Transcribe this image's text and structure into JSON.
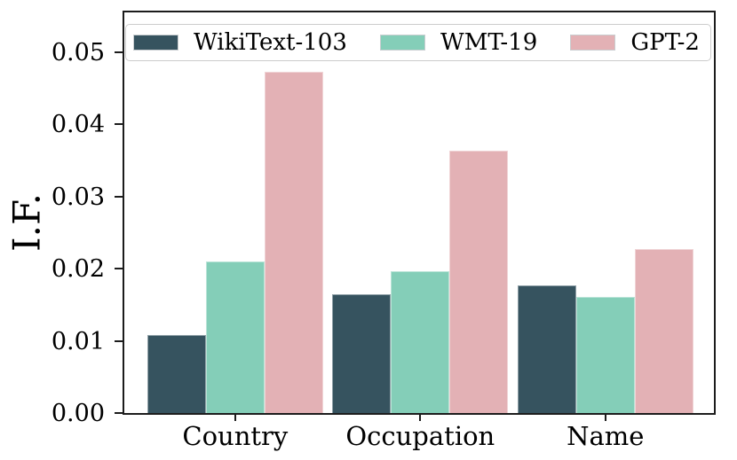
{
  "chart_data": {
    "type": "bar",
    "title": "",
    "xlabel": "",
    "ylabel": "I.F.",
    "categories": [
      "Country",
      "Occupation",
      "Name"
    ],
    "series": [
      {
        "name": "WikiText-103",
        "color": "#36535F",
        "values": [
          0.0108,
          0.0164,
          0.0177
        ]
      },
      {
        "name": "WMT-19",
        "color": "#84CEB8",
        "values": [
          0.021,
          0.0196,
          0.0161
        ]
      },
      {
        "name": "GPT-2",
        "color": "#E3B1B5",
        "values": [
          0.0473,
          0.0364,
          0.0227
        ]
      }
    ],
    "ylim": [
      0,
      0.0555
    ],
    "yticks": [
      0,
      0.01,
      0.02,
      0.03,
      0.04,
      0.05
    ],
    "ytick_labels": [
      "0.00",
      "0.01",
      "0.02",
      "0.03",
      "0.04",
      "0.05"
    ],
    "legend_position": "top-inside",
    "grid": false
  }
}
